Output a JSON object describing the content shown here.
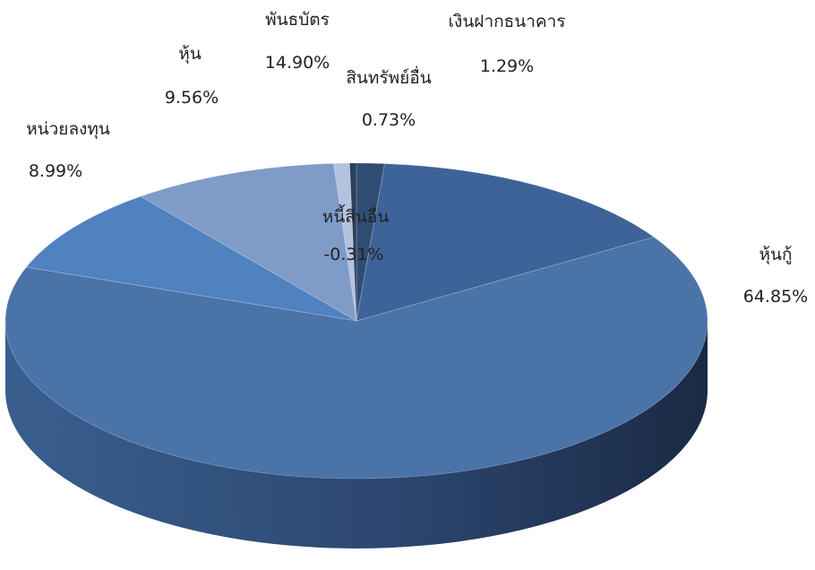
{
  "chart_data": {
    "type": "pie",
    "style": "3d",
    "title": "",
    "legend": "none",
    "slices": [
      {
        "label": "เงินฝากธนาคาร",
        "value": 1.29,
        "display": "1.29%",
        "color": "#2f4d73"
      },
      {
        "label": "พันธบัตร",
        "value": 14.9,
        "display": "14.90%",
        "color": "#3d6399"
      },
      {
        "label": "หุ้นกู้",
        "value": 64.85,
        "display": "64.85%",
        "color": "#4a73a8"
      },
      {
        "label": "หน่วยลงทุน",
        "value": 8.99,
        "display": "8.99%",
        "color": "#4f82bf"
      },
      {
        "label": "หุ้น",
        "value": 9.56,
        "display": "9.56%",
        "color": "#7f9bc7"
      },
      {
        "label": "สินทรัพย์อื่น",
        "value": 0.73,
        "display": "0.73%",
        "color": "#b3c2de"
      },
      {
        "label": "หนี้สินอื่น",
        "value": -0.31,
        "display": "-0.31%",
        "color": "#2b3f5e"
      }
    ]
  }
}
